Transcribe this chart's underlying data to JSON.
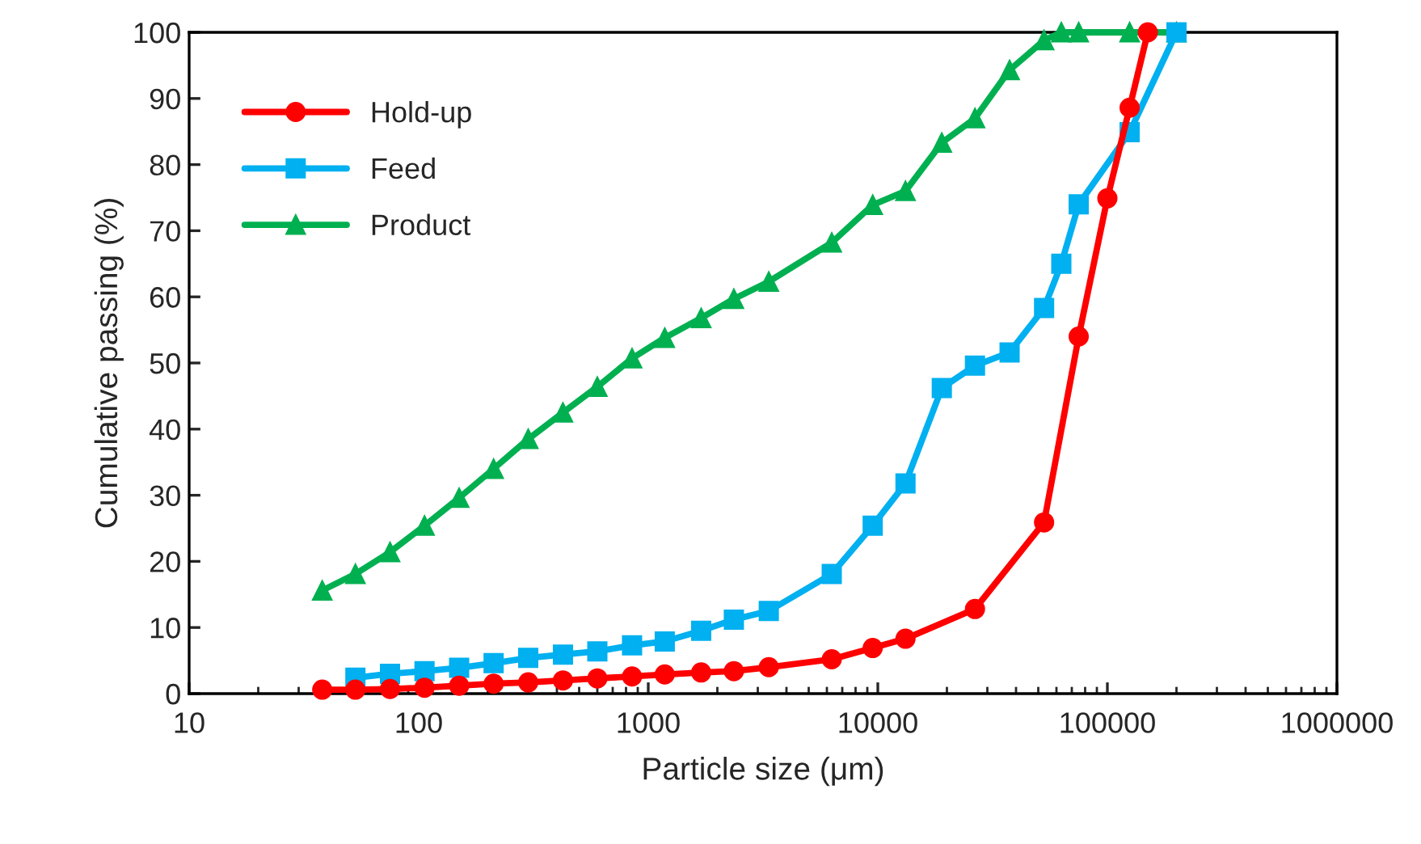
{
  "chart_data": {
    "type": "line",
    "xlabel": "Particle size (μm)",
    "ylabel": "Cumulative passing (%)",
    "log": "x",
    "xlim": [
      10,
      1000000
    ],
    "xticks": [
      10,
      100,
      1000,
      10000,
      100000,
      1000000
    ],
    "ylim": [
      0,
      100
    ],
    "yticks": [
      0,
      10,
      20,
      30,
      40,
      50,
      60,
      70,
      80,
      90,
      100
    ],
    "grid": false,
    "legend": "top left",
    "series": [
      {
        "name": "Hold-up",
        "color": "#ff0000",
        "marker": "circle",
        "x": [
          38,
          53,
          75,
          106,
          150,
          212,
          300,
          425,
          600,
          850,
          1180,
          1700,
          2360,
          3350,
          6300,
          9500,
          13200,
          26500,
          53000,
          75000,
          100000,
          125000,
          150000
        ],
        "values": [
          0.6,
          0.6,
          0.7,
          0.9,
          1.2,
          1.5,
          1.7,
          2.0,
          2.3,
          2.6,
          2.9,
          3.2,
          3.4,
          4.0,
          5.2,
          6.9,
          8.3,
          12.8,
          25.9,
          54,
          74.9,
          88.6,
          100
        ]
      },
      {
        "name": "Feed",
        "color": "#00b0f0",
        "marker": "square",
        "x": [
          53,
          75,
          106,
          150,
          212,
          300,
          425,
          600,
          850,
          1180,
          1700,
          2360,
          3350,
          6300,
          9500,
          13200,
          19000,
          26500,
          37500,
          53000,
          63000,
          75000,
          125000,
          200000
        ],
        "values": [
          2.4,
          3.0,
          3.4,
          3.9,
          4.6,
          5.4,
          5.9,
          6.4,
          7.3,
          7.9,
          9.5,
          11.2,
          12.5,
          18.1,
          25.4,
          31.8,
          46.2,
          49.6,
          51.6,
          58.3,
          65,
          74,
          84.9,
          100
        ]
      },
      {
        "name": "Product",
        "color": "#00b050",
        "marker": "triangle",
        "x": [
          38,
          53,
          75,
          106,
          150,
          212,
          300,
          425,
          600,
          850,
          1180,
          1700,
          2360,
          3350,
          6300,
          9500,
          13200,
          19000,
          26500,
          37500,
          53000,
          63000,
          75000,
          125000,
          200000
        ],
        "values": [
          15.6,
          18.1,
          21.4,
          25.4,
          29.6,
          34,
          38.5,
          42.5,
          46.4,
          50.7,
          53.8,
          56.8,
          59.7,
          62.3,
          68.2,
          73.9,
          76,
          83.3,
          87,
          94.3,
          98.8,
          100,
          100,
          100,
          100
        ]
      }
    ]
  }
}
